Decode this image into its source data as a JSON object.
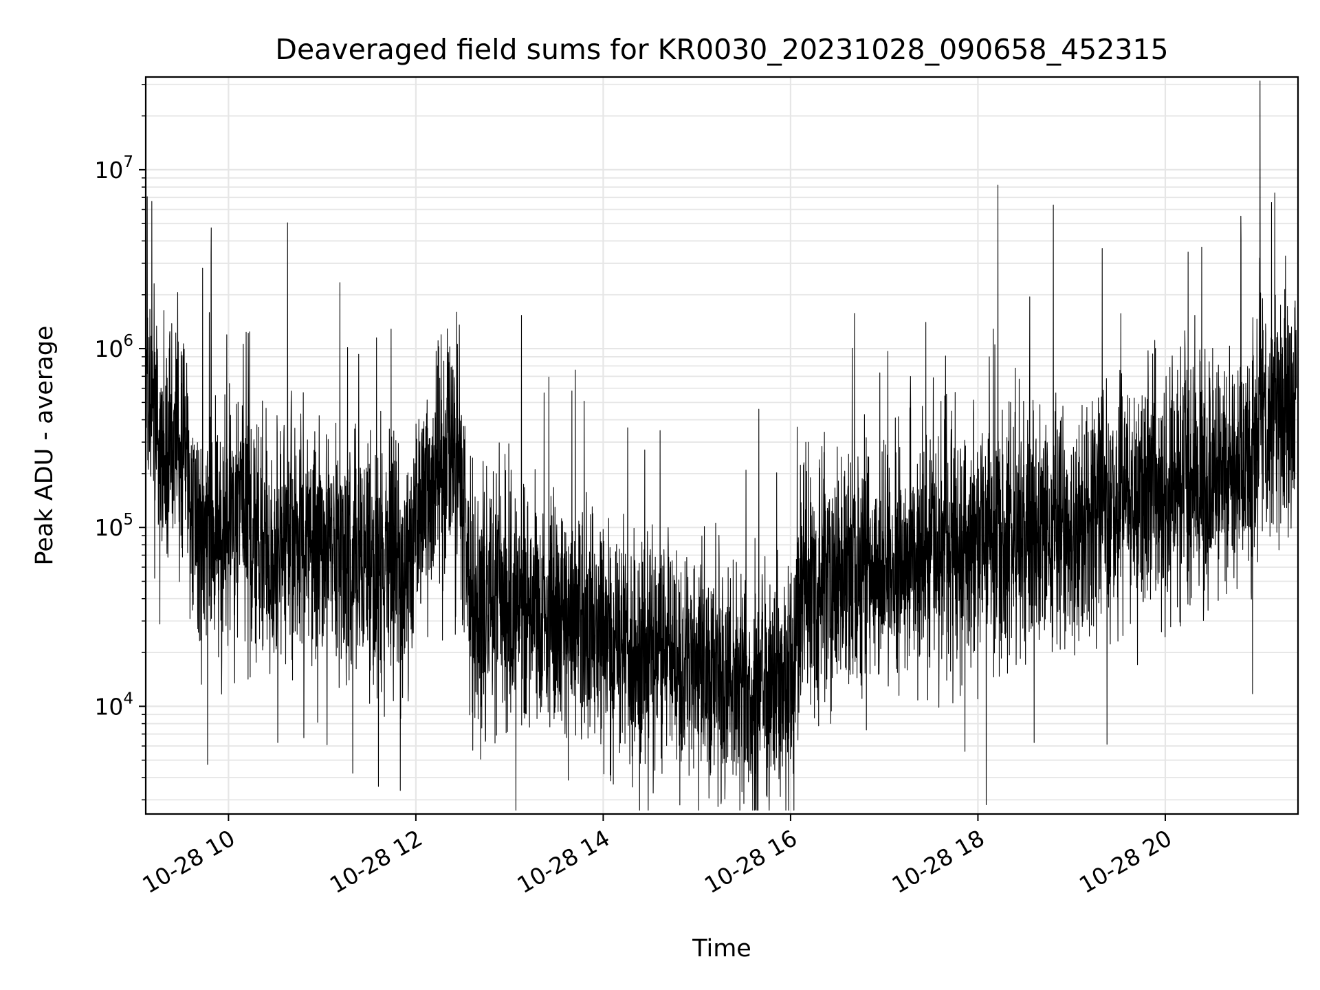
{
  "chart_data": {
    "type": "line",
    "title": "Deaveraged field sums for KR0030_20231028_090658_452315",
    "xlabel": "Time",
    "ylabel": "Peak ADU - average",
    "yscale": "log",
    "xlim": [
      "10-28 09:07",
      "10-28 21:25"
    ],
    "ylim": [
      2500,
      33000000
    ],
    "grid": true,
    "line_color": "#000000",
    "grid_color": "#e6e6e6",
    "x_ticks": [
      "10-28 10",
      "10-28 12",
      "10-28 14",
      "10-28 16",
      "10-28 18",
      "10-28 20"
    ],
    "y_ticks": [
      {
        "base": "10",
        "exp": "4",
        "value": 10000
      },
      {
        "base": "10",
        "exp": "5",
        "value": 100000
      },
      {
        "base": "10",
        "exp": "6",
        "value": 1000000
      },
      {
        "base": "10",
        "exp": "7",
        "value": 10000000
      }
    ],
    "series": [
      {
        "x_hours": [
          9.12,
          9.16,
          9.22,
          9.3,
          9.4,
          9.5,
          9.6,
          9.7,
          9.85,
          10.0,
          10.15,
          10.3,
          10.45,
          10.6,
          10.8,
          11.0,
          11.2,
          11.4,
          11.6,
          11.8,
          11.95,
          12.1,
          12.25,
          12.4,
          12.5,
          12.55,
          12.7,
          12.9,
          13.1,
          13.3,
          13.5,
          13.7,
          13.9,
          14.1,
          14.3,
          14.5,
          14.7,
          14.9,
          15.1,
          15.3,
          15.5,
          15.7,
          15.9,
          16.0,
          16.1,
          16.2,
          16.4,
          16.6,
          16.8,
          17.0,
          17.2,
          17.4,
          17.6,
          17.8,
          18.0,
          18.2,
          18.4,
          18.6,
          18.8,
          19.0,
          19.2,
          19.4,
          19.6,
          19.8,
          20.0,
          20.2,
          20.4,
          20.6,
          20.8,
          20.95,
          21.0,
          21.1,
          21.2,
          21.3,
          21.4
        ],
        "y": [
          450000,
          350000,
          300000,
          250000,
          300000,
          400000,
          150000,
          100000,
          95000,
          100000,
          130000,
          80000,
          75000,
          90000,
          80000,
          85000,
          75000,
          70000,
          65000,
          60000,
          65000,
          180000,
          220000,
          250000,
          200000,
          45000,
          35000,
          40000,
          38000,
          35000,
          30000,
          28000,
          25000,
          22000,
          20000,
          20000,
          22000,
          20000,
          17000,
          15000,
          14000,
          14000,
          14000,
          15000,
          45000,
          60000,
          50000,
          55000,
          60000,
          60000,
          65000,
          70000,
          75000,
          80000,
          85000,
          90000,
          95000,
          100000,
          100000,
          105000,
          120000,
          130000,
          150000,
          160000,
          170000,
          190000,
          200000,
          210000,
          220000,
          240000,
          450000,
          450000,
          470000,
          480000,
          500000
        ]
      }
    ]
  }
}
